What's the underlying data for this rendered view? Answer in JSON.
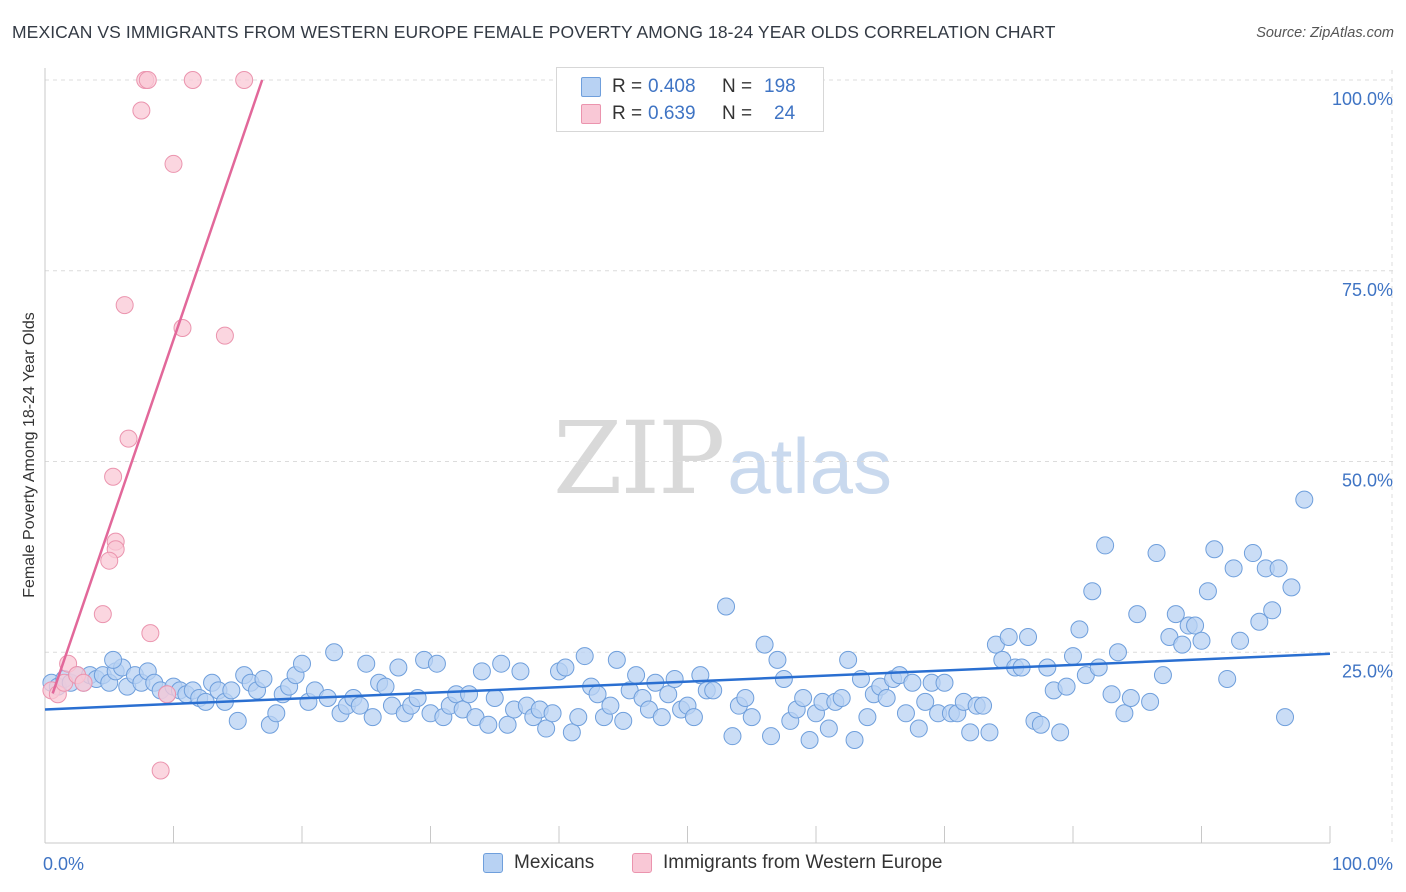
{
  "title": "MEXICAN VS IMMIGRANTS FROM WESTERN EUROPE FEMALE POVERTY AMONG 18-24 YEAR OLDS CORRELATION CHART",
  "source": "Source: ZipAtlas.com",
  "watermark": {
    "zip": "ZIP",
    "atlas": "atlas"
  },
  "colors": {
    "mexicans_fill": "#b8d2f3",
    "mexicans_stroke": "#6f9fdc",
    "mexicans_line": "#2a6fd1",
    "immigrants_fill": "#f9c8d6",
    "immigrants_stroke": "#eb94ae",
    "immigrants_line": "#e2689a",
    "axis_text": "#3f74c4",
    "grid": "#dcdcdc"
  },
  "legend": {
    "rows": [
      {
        "r_label": "R =",
        "r_value": "0.408",
        "n_label": "N =",
        "n_value": "198"
      },
      {
        "r_label": "R =",
        "r_value": "0.639",
        "n_label": "N =",
        "n_value": "24"
      }
    ]
  },
  "bottom_legend": {
    "mexicans": "Mexicans",
    "immigrants": "Immigrants from Western Europe"
  },
  "chart_data": {
    "type": "scatter",
    "title": "MEXICAN VS IMMIGRANTS FROM WESTERN EUROPE FEMALE POVERTY AMONG 18-24 YEAR OLDS CORRELATION CHART",
    "xlabel": "",
    "ylabel": "Female Poverty Among 18-24 Year Olds",
    "xlim": [
      0,
      100
    ],
    "ylim": [
      0,
      100
    ],
    "x_tick_labels": [
      "0.0%",
      "100.0%"
    ],
    "y_ticks": [
      25,
      50,
      75,
      100
    ],
    "y_tick_labels": [
      "25.0%",
      "50.0%",
      "75.0%",
      "100.0%"
    ],
    "grid": true,
    "series": [
      {
        "name": "Mexicans",
        "r": 0.408,
        "n": 198,
        "trend": {
          "x": [
            0,
            100
          ],
          "y": [
            17.5,
            24.8
          ]
        },
        "points": [
          [
            0.5,
            21
          ],
          [
            1,
            20.5
          ],
          [
            1.5,
            21.5
          ],
          [
            2,
            21
          ],
          [
            2.5,
            22
          ],
          [
            3,
            21
          ],
          [
            3.5,
            22
          ],
          [
            4,
            21.5
          ],
          [
            4.5,
            22
          ],
          [
            5,
            21
          ],
          [
            5.5,
            22.5
          ],
          [
            6,
            23
          ],
          [
            5.3,
            24
          ],
          [
            6.4,
            20.5
          ],
          [
            7,
            22
          ],
          [
            7.5,
            21
          ],
          [
            8,
            22.5
          ],
          [
            8.5,
            21
          ],
          [
            9,
            20
          ],
          [
            9.5,
            19.5
          ],
          [
            10,
            20.5
          ],
          [
            10.5,
            20
          ],
          [
            11,
            19.5
          ],
          [
            11.5,
            20
          ],
          [
            12,
            19
          ],
          [
            12.5,
            18.5
          ],
          [
            13,
            21
          ],
          [
            13.5,
            20
          ],
          [
            14,
            18.5
          ],
          [
            14.5,
            20
          ],
          [
            15,
            16
          ],
          [
            15.5,
            22
          ],
          [
            16,
            21
          ],
          [
            16.5,
            20
          ],
          [
            17,
            21.5
          ],
          [
            17.5,
            15.5
          ],
          [
            18,
            17
          ],
          [
            18.5,
            19.5
          ],
          [
            19,
            20.5
          ],
          [
            19.5,
            22
          ],
          [
            20,
            23.5
          ],
          [
            20.5,
            18.5
          ],
          [
            21,
            20
          ],
          [
            22,
            19
          ],
          [
            22.5,
            25
          ],
          [
            23,
            17
          ],
          [
            23.5,
            18
          ],
          [
            24,
            19
          ],
          [
            24.5,
            18
          ],
          [
            25,
            23.5
          ],
          [
            25.5,
            16.5
          ],
          [
            26,
            21
          ],
          [
            26.5,
            20.5
          ],
          [
            27,
            18
          ],
          [
            27.5,
            23
          ],
          [
            28,
            17
          ],
          [
            28.5,
            18
          ],
          [
            29,
            19
          ],
          [
            29.5,
            24
          ],
          [
            30,
            17
          ],
          [
            30.5,
            23.5
          ],
          [
            31,
            16.5
          ],
          [
            31.5,
            18
          ],
          [
            32,
            19.5
          ],
          [
            32.5,
            17.5
          ],
          [
            33,
            19.5
          ],
          [
            33.5,
            16.5
          ],
          [
            34,
            22.5
          ],
          [
            34.5,
            15.5
          ],
          [
            35,
            19
          ],
          [
            35.5,
            23.5
          ],
          [
            36,
            15.5
          ],
          [
            36.5,
            17.5
          ],
          [
            37,
            22.5
          ],
          [
            37.5,
            18
          ],
          [
            38,
            16.5
          ],
          [
            38.5,
            17.5
          ],
          [
            39,
            15
          ],
          [
            39.5,
            17
          ],
          [
            40,
            22.5
          ],
          [
            40.5,
            23
          ],
          [
            41,
            14.5
          ],
          [
            41.5,
            16.5
          ],
          [
            42,
            24.5
          ],
          [
            42.5,
            20.5
          ],
          [
            43,
            19.5
          ],
          [
            43.5,
            16.5
          ],
          [
            44,
            18
          ],
          [
            44.5,
            24
          ],
          [
            45,
            16
          ],
          [
            45.5,
            20
          ],
          [
            46,
            22
          ],
          [
            46.5,
            19
          ],
          [
            47,
            17.5
          ],
          [
            47.5,
            21
          ],
          [
            48,
            16.5
          ],
          [
            48.5,
            19.5
          ],
          [
            49,
            21.5
          ],
          [
            49.5,
            17.5
          ],
          [
            50,
            18
          ],
          [
            50.5,
            16.5
          ],
          [
            51,
            22
          ],
          [
            51.5,
            20
          ],
          [
            52,
            20
          ],
          [
            53,
            31
          ],
          [
            53.5,
            14
          ],
          [
            54,
            18
          ],
          [
            54.5,
            19
          ],
          [
            55,
            16.5
          ],
          [
            56,
            26
          ],
          [
            56.5,
            14
          ],
          [
            57,
            24
          ],
          [
            57.5,
            21.5
          ],
          [
            58,
            16
          ],
          [
            58.5,
            17.5
          ],
          [
            59,
            19
          ],
          [
            59.5,
            13.5
          ],
          [
            60,
            17
          ],
          [
            60.5,
            18.5
          ],
          [
            61,
            15
          ],
          [
            61.5,
            18.5
          ],
          [
            62,
            19
          ],
          [
            62.5,
            24
          ],
          [
            63,
            13.5
          ],
          [
            63.5,
            21.5
          ],
          [
            64,
            16.5
          ],
          [
            64.5,
            19.5
          ],
          [
            65,
            20.5
          ],
          [
            65.5,
            19
          ],
          [
            66,
            21.5
          ],
          [
            66.5,
            22
          ],
          [
            67,
            17
          ],
          [
            67.5,
            21
          ],
          [
            68,
            15
          ],
          [
            68.5,
            18.5
          ],
          [
            69,
            21
          ],
          [
            69.5,
            17
          ],
          [
            70,
            21
          ],
          [
            70.5,
            17
          ],
          [
            71,
            17
          ],
          [
            71.5,
            18.5
          ],
          [
            72,
            14.5
          ],
          [
            72.5,
            18
          ],
          [
            73,
            18
          ],
          [
            73.5,
            14.5
          ],
          [
            74,
            26
          ],
          [
            74.5,
            24
          ],
          [
            75,
            27
          ],
          [
            75.5,
            23
          ],
          [
            76,
            23
          ],
          [
            76.5,
            27
          ],
          [
            77,
            16
          ],
          [
            77.5,
            15.5
          ],
          [
            78,
            23
          ],
          [
            78.5,
            20
          ],
          [
            79,
            14.5
          ],
          [
            79.5,
            20.5
          ],
          [
            80,
            24.5
          ],
          [
            80.5,
            28
          ],
          [
            81,
            22
          ],
          [
            81.5,
            33
          ],
          [
            82,
            23
          ],
          [
            82.5,
            39
          ],
          [
            83,
            19.5
          ],
          [
            83.5,
            25
          ],
          [
            84,
            17
          ],
          [
            84.5,
            19
          ],
          [
            85,
            30
          ],
          [
            86,
            18.5
          ],
          [
            86.5,
            38
          ],
          [
            87,
            22
          ],
          [
            87.5,
            27
          ],
          [
            88,
            30
          ],
          [
            88.5,
            26
          ],
          [
            89,
            28.5
          ],
          [
            89.5,
            28.5
          ],
          [
            90,
            26.5
          ],
          [
            90.5,
            33
          ],
          [
            91,
            38.5
          ],
          [
            92,
            21.5
          ],
          [
            92.5,
            36
          ],
          [
            93,
            26.5
          ],
          [
            94,
            38
          ],
          [
            94.5,
            29
          ],
          [
            95,
            36
          ],
          [
            95.5,
            30.5
          ],
          [
            96,
            36
          ],
          [
            96.5,
            16.5
          ],
          [
            97,
            33.5
          ],
          [
            98,
            45
          ]
        ]
      },
      {
        "name": "Immigrants from Western Europe",
        "r": 0.639,
        "n": 24,
        "trend": {
          "x": [
            0.6,
            16.9
          ],
          "y": [
            19.6,
            100
          ]
        },
        "points": [
          [
            0.5,
            20
          ],
          [
            1,
            19.5
          ],
          [
            1.5,
            21
          ],
          [
            1.8,
            23.5
          ],
          [
            2.5,
            22
          ],
          [
            5.3,
            48
          ],
          [
            5.5,
            39.5
          ],
          [
            6.5,
            53
          ],
          [
            5.5,
            38.5
          ],
          [
            5,
            37
          ],
          [
            4.5,
            30
          ],
          [
            6.2,
            70.5
          ],
          [
            7.5,
            96
          ],
          [
            7.8,
            100
          ],
          [
            8,
            100
          ],
          [
            8.2,
            27.5
          ],
          [
            9,
            9.5
          ],
          [
            10,
            89
          ],
          [
            10.7,
            67.5
          ],
          [
            11.5,
            100
          ],
          [
            14,
            66.5
          ],
          [
            15.5,
            100
          ],
          [
            9.5,
            19.5
          ],
          [
            3,
            21
          ]
        ]
      }
    ]
  }
}
